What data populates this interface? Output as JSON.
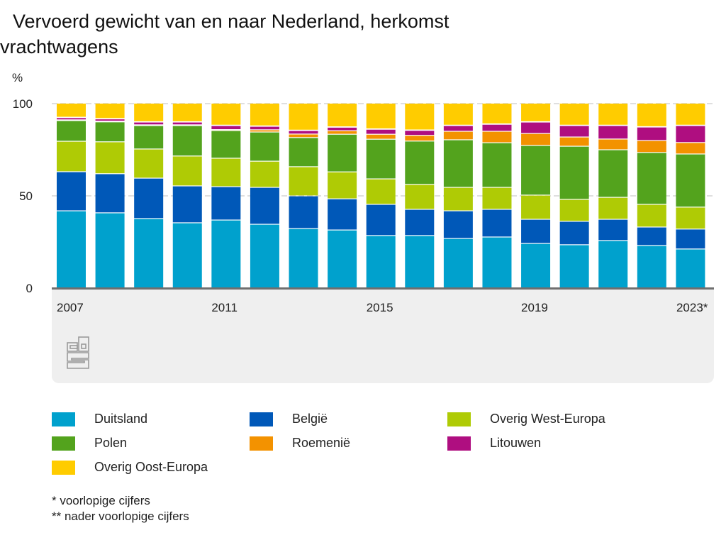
{
  "chart_data": {
    "type": "bar",
    "stacked": true,
    "title": "Vervoerd gewicht van en naar Nederland, herkomst vrachtwagens",
    "title_lines": [
      "Vervoerd gewicht van en naar Nederland, herkomst",
      "vrachtwagens"
    ],
    "ylabel": "%",
    "xlabel": "",
    "ylim": [
      0,
      100
    ],
    "yticks": [
      0,
      50,
      100
    ],
    "ytick_labels": [
      "0",
      "50",
      "100"
    ],
    "grid": true,
    "categories": [
      "2007",
      "2008",
      "2009",
      "2010",
      "2011",
      "2012",
      "2013",
      "2014",
      "2015",
      "2016",
      "2017",
      "2018",
      "2019",
      "2020",
      "2021",
      "2022",
      "2023*"
    ],
    "xtick_labels": [
      "2007",
      "2011",
      "2015",
      "2019",
      "2023*"
    ],
    "series": [
      {
        "name": "Duitsland",
        "color": "#00a1cd",
        "values": [
          41.9,
          40.8,
          37.7,
          35.4,
          36.9,
          34.6,
          32.3,
          31.5,
          28.5,
          28.5,
          26.9,
          27.7,
          24.2,
          23.5,
          25.8,
          23.1,
          21.2
        ]
      },
      {
        "name": "België",
        "color": "#0058b8",
        "values": [
          21.2,
          21.2,
          21.9,
          20.0,
          18.1,
          20.0,
          17.7,
          16.9,
          16.9,
          14.2,
          15.0,
          15.0,
          13.1,
          12.7,
          11.5,
          10.0,
          10.8
        ]
      },
      {
        "name": "Overig West-Europa",
        "color": "#afcb05",
        "values": [
          16.5,
          17.3,
          15.8,
          16.2,
          15.4,
          14.2,
          15.8,
          14.6,
          13.8,
          13.5,
          12.7,
          11.9,
          13.1,
          11.9,
          11.9,
          12.3,
          11.9
        ]
      },
      {
        "name": "Polen",
        "color": "#53a31d",
        "values": [
          11.2,
          10.8,
          12.7,
          16.5,
          15.0,
          15.8,
          15.8,
          20.4,
          21.5,
          23.5,
          25.8,
          24.2,
          26.9,
          28.8,
          25.8,
          28.1,
          28.8
        ]
      },
      {
        "name": "Roemenië",
        "color": "#f39200",
        "values": [
          0.4,
          0.4,
          0.4,
          0.4,
          0.5,
          1.2,
          1.9,
          1.9,
          2.7,
          3.1,
          4.6,
          6.2,
          6.5,
          5.0,
          5.8,
          6.5,
          6.2
        ]
      },
      {
        "name": "Litouwen",
        "color": "#af0e80",
        "values": [
          1.2,
          1.2,
          1.5,
          1.5,
          2.2,
          1.9,
          1.9,
          1.9,
          2.7,
          2.7,
          3.1,
          3.8,
          6.2,
          6.2,
          7.3,
          7.3,
          9.2
        ]
      },
      {
        "name": "Overig Oost-Europa",
        "color": "#ffcc00",
        "values": [
          7.6,
          8.3,
          10.0,
          10.0,
          11.9,
          12.3,
          14.6,
          12.8,
          13.9,
          14.5,
          11.9,
          11.2,
          10.0,
          11.9,
          11.9,
          12.7,
          11.9
        ]
      }
    ],
    "legend_position": "bottom",
    "notes": [
      "* voorlopige cijfers",
      "** nader voorlopige cijfers"
    ]
  },
  "logo": "cbs-logo-icon"
}
